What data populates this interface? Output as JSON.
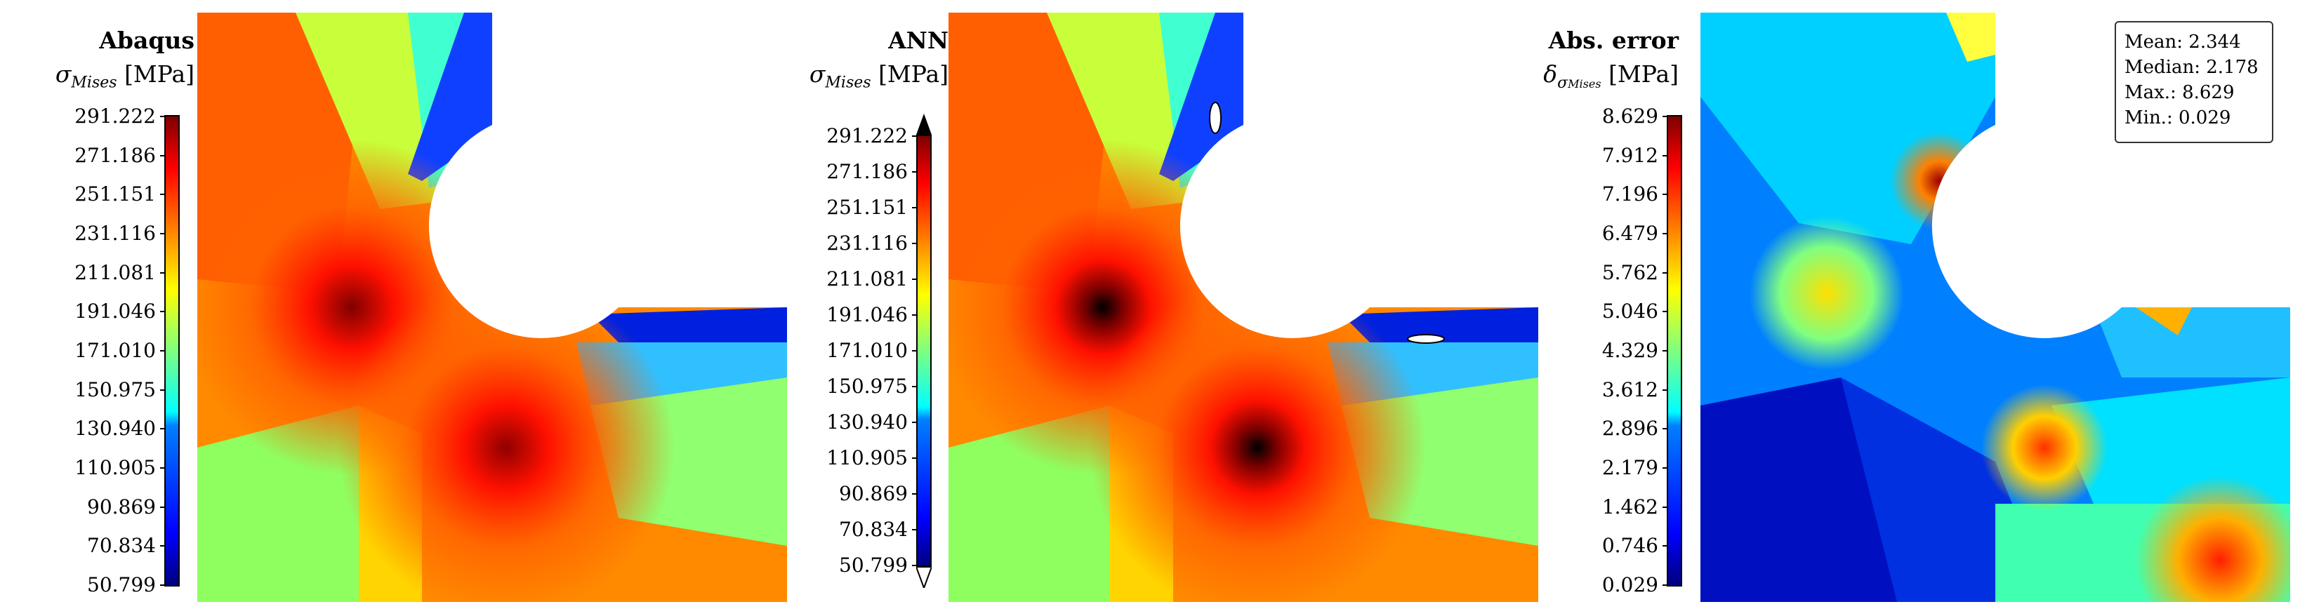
{
  "chart_data": [
    {
      "type": "heatmap",
      "title": "Abaqus",
      "quantity": "σ",
      "quantity_sub": "Mises",
      "unit": "[MPa]",
      "colormap": "jet",
      "ticks": [
        "291.222",
        "271.186",
        "251.151",
        "231.116",
        "211.081",
        "191.046",
        "171.010",
        "150.975",
        "130.940",
        "110.905",
        "90.869",
        "70.834",
        "50.799"
      ],
      "range": [
        50.799,
        291.222
      ]
    },
    {
      "type": "heatmap",
      "title": "ANN",
      "quantity": "σ",
      "quantity_sub": "Mises",
      "unit": "[MPa]",
      "colormap": "jet",
      "ticks": [
        "291.222",
        "271.186",
        "251.151",
        "231.116",
        "211.081",
        "191.046",
        "171.010",
        "150.975",
        "130.940",
        "110.905",
        "90.869",
        "70.834",
        "50.799"
      ],
      "range": [
        50.799,
        291.222
      ],
      "overflow_markers": [
        "max",
        "min"
      ]
    },
    {
      "type": "heatmap",
      "title": "Abs. error",
      "quantity": "δ",
      "quantity_sub": "σ",
      "quantity_subsub": "Mises",
      "unit": "[MPa]",
      "colormap": "jet",
      "ticks": [
        "8.629",
        "7.912",
        "7.196",
        "6.479",
        "5.762",
        "5.046",
        "4.329",
        "3.612",
        "2.896",
        "2.179",
        "1.462",
        "0.746",
        "0.029"
      ],
      "range": [
        0.029,
        8.629
      ],
      "stats": [
        "Mean: 2.344",
        "Median: 2.178",
        "Max.: 8.629",
        "Min.: 0.029"
      ]
    }
  ],
  "colors": {
    "jet_low": "#00007f",
    "jet_mid": "#7fff7f",
    "jet_high": "#7f0000",
    "overflow": "#000000"
  }
}
